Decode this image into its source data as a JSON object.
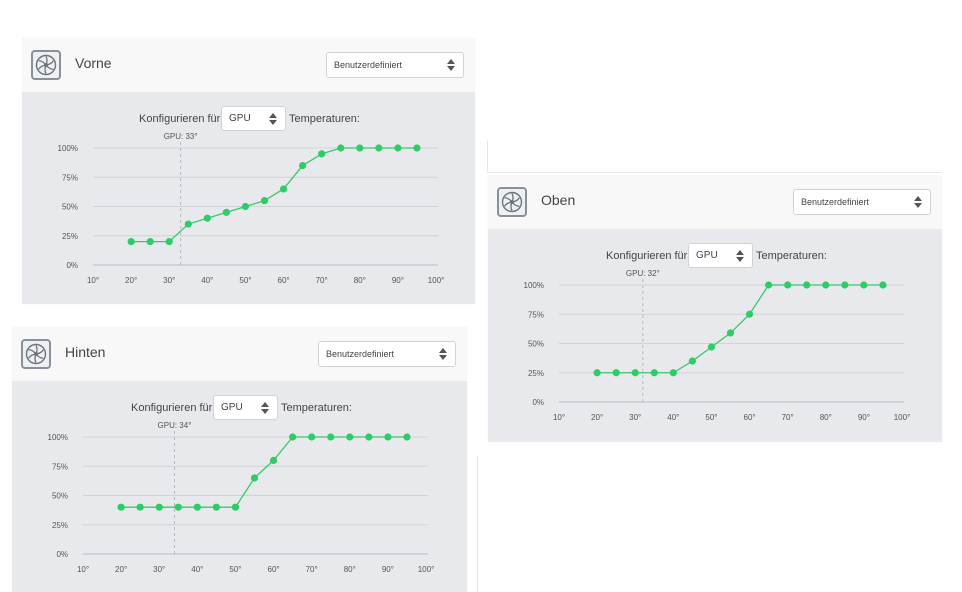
{
  "common": {
    "configure_prefix": "Konfigurieren für",
    "configure_suffix": "Temperaturen:",
    "colors": {
      "line": "#3cc86a",
      "point": "#2ecc66",
      "grid": "#cfd2d6",
      "panel": "#e8e9ec",
      "header": "#f8f8f9"
    }
  },
  "panels": [
    {
      "title": "Vorne",
      "mode": "Benutzerdefiniert",
      "source": "GPU",
      "icon": "fan-icon",
      "chart_data": {
        "type": "line",
        "annotation": "GPU: 33°",
        "current_temp": 33,
        "xlim": [
          10,
          100
        ],
        "ylim": [
          0,
          100
        ],
        "x_ticks": [
          "10°",
          "20°",
          "30°",
          "40°",
          "50°",
          "60°",
          "70°",
          "80°",
          "90°",
          "100°"
        ],
        "y_ticks": [
          "0%",
          "25%",
          "50%",
          "75%",
          "100%"
        ],
        "grid": true,
        "x": [
          20,
          25,
          30,
          35,
          40,
          45,
          50,
          55,
          60,
          65,
          70,
          75,
          80,
          85,
          90,
          95
        ],
        "values": [
          20,
          20,
          20,
          35,
          40,
          45,
          50,
          55,
          65,
          85,
          95,
          100,
          100,
          100,
          100,
          100
        ]
      }
    },
    {
      "title": "Hinten",
      "mode": "Benutzerdefiniert",
      "source": "GPU",
      "icon": "fan-icon",
      "chart_data": {
        "type": "line",
        "annotation": "GPU: 34°",
        "current_temp": 34,
        "xlim": [
          10,
          100
        ],
        "ylim": [
          0,
          100
        ],
        "x_ticks": [
          "10°",
          "20°",
          "30°",
          "40°",
          "50°",
          "60°",
          "70°",
          "80°",
          "90°",
          "100°"
        ],
        "y_ticks": [
          "0%",
          "25%",
          "50%",
          "75%",
          "100%"
        ],
        "grid": true,
        "x": [
          20,
          25,
          30,
          35,
          40,
          45,
          50,
          55,
          60,
          65,
          70,
          75,
          80,
          85,
          90,
          95
        ],
        "values": [
          40,
          40,
          40,
          40,
          40,
          40,
          40,
          65,
          80,
          100,
          100,
          100,
          100,
          100,
          100,
          100
        ]
      }
    },
    {
      "title": "Oben",
      "mode": "Benutzerdefiniert",
      "source": "GPU",
      "icon": "fan-icon",
      "chart_data": {
        "type": "line",
        "annotation": "GPU: 32°",
        "current_temp": 32,
        "xlim": [
          10,
          100
        ],
        "ylim": [
          0,
          100
        ],
        "x_ticks": [
          "10°",
          "20°",
          "30°",
          "40°",
          "50°",
          "60°",
          "70°",
          "80°",
          "90°",
          "100°"
        ],
        "y_ticks": [
          "0%",
          "25%",
          "50%",
          "75%",
          "100%"
        ],
        "grid": true,
        "x": [
          20,
          25,
          30,
          35,
          40,
          45,
          50,
          55,
          60,
          65,
          70,
          75,
          80,
          85,
          90,
          95
        ],
        "values": [
          25,
          25,
          25,
          25,
          25,
          35,
          47,
          59,
          75,
          100,
          100,
          100,
          100,
          100,
          100,
          100
        ]
      }
    }
  ]
}
